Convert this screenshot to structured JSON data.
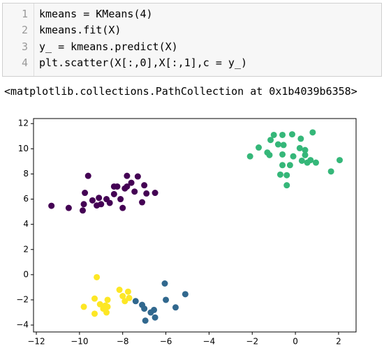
{
  "code": {
    "lines": [
      {
        "number": 1,
        "text": "kmeans = KMeans(4)"
      },
      {
        "number": 2,
        "text": "kmeans.fit(X)"
      },
      {
        "number": 3,
        "text": "y_ = kmeans.predict(X)"
      },
      {
        "number": 4,
        "text": "plt.scatter(X[:,0],X[:,1],c = y_)"
      }
    ]
  },
  "output": {
    "text": "<matplotlib.collections.PathCollection at 0x1b4039b6358>"
  },
  "chart_data": {
    "type": "scatter",
    "xlim": [
      -12.13,
      2.81
    ],
    "ylim": [
      -4.55,
      12.4
    ],
    "xticks": [
      {
        "value": -12,
        "label": "−12"
      },
      {
        "value": -10,
        "label": "−10"
      },
      {
        "value": -8,
        "label": "−8"
      },
      {
        "value": -6,
        "label": "−6"
      },
      {
        "value": -4,
        "label": "−4"
      },
      {
        "value": -2,
        "label": "−2"
      },
      0,
      2
    ],
    "yticks": [
      {
        "value": -4,
        "label": "−4"
      },
      {
        "value": -2,
        "label": "−2"
      },
      0,
      2,
      4,
      6,
      8,
      10,
      12
    ],
    "series": [
      {
        "color": "#440154",
        "x": [
          -11.3,
          -10.5,
          -9.6,
          -9.75,
          -9.85,
          -9.8,
          -9.4,
          -9.1,
          -9.0,
          -8.75,
          -8.6,
          -8.4,
          -8.25,
          -8.1,
          -7.9,
          -7.8,
          -7.8,
          -7.6,
          -7.45,
          -7.3,
          -7.0,
          -7.1,
          -6.9,
          -6.5,
          -8.0,
          -8.4,
          -9.2
        ],
        "y": [
          5.47,
          5.3,
          7.85,
          6.5,
          5.1,
          5.6,
          5.9,
          6.1,
          5.6,
          6.0,
          5.7,
          6.4,
          7.0,
          6.0,
          6.85,
          7.85,
          7.0,
          7.3,
          6.6,
          7.8,
          7.1,
          5.75,
          6.45,
          6.5,
          5.3,
          7.0,
          5.5
        ]
      },
      {
        "color": "#31688e",
        "x": [
          -7.4,
          -7.1,
          -7.0,
          -6.95,
          -6.7,
          -6.55,
          -6.05,
          -6.0,
          -5.55,
          -5.1,
          -6.5
        ],
        "y": [
          -2.1,
          -2.4,
          -2.7,
          -3.65,
          -3.0,
          -2.8,
          -0.7,
          -2.0,
          -2.6,
          -1.55,
          -3.4
        ]
      },
      {
        "color": "#35b779",
        "x": [
          -2.1,
          -1.7,
          -1.3,
          -1.2,
          -1.15,
          -1.0,
          -0.8,
          -0.6,
          -0.6,
          -0.55,
          -0.7,
          -0.6,
          -0.4,
          -0.4,
          -0.25,
          -0.15,
          -0.1,
          0.2,
          0.25,
          0.3,
          0.45,
          0.45,
          0.55,
          0.7,
          0.8,
          0.95,
          1.65,
          2.05
        ],
        "y": [
          9.4,
          10.1,
          9.7,
          9.5,
          10.7,
          11.1,
          10.35,
          11.1,
          9.55,
          10.3,
          7.95,
          8.7,
          7.1,
          7.9,
          8.7,
          11.15,
          9.4,
          10.05,
          10.8,
          9.05,
          9.5,
          9.9,
          8.9,
          9.1,
          11.3,
          8.9,
          8.2,
          9.1
        ]
      },
      {
        "color": "#fde725",
        "x": [
          -9.2,
          -9.8,
          -9.3,
          -9.3,
          -9.05,
          -8.9,
          -8.75,
          -8.7,
          -8.8,
          -8.15,
          -8.0,
          -7.9,
          -7.75,
          -7.7,
          -8.7
        ],
        "y": [
          -0.2,
          -2.55,
          -1.9,
          -3.1,
          -2.35,
          -2.7,
          -3.0,
          -2.0,
          -2.45,
          -1.2,
          -1.7,
          -2.1,
          -1.35,
          -1.85,
          -2.55
        ]
      }
    ]
  }
}
